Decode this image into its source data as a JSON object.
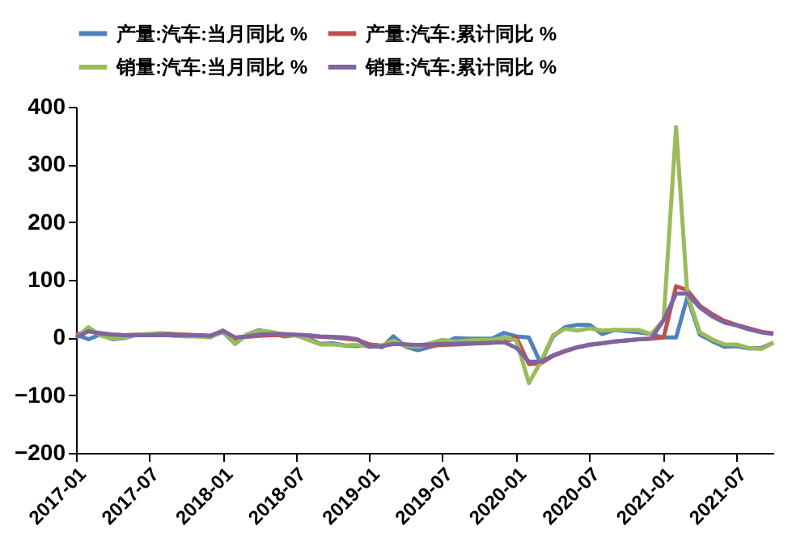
{
  "chart_data": {
    "type": "line",
    "x": [
      "2017-01",
      "2017-02",
      "2017-03",
      "2017-04",
      "2017-05",
      "2017-06",
      "2017-07",
      "2017-08",
      "2017-09",
      "2017-10",
      "2017-11",
      "2017-12",
      "2018-01",
      "2018-02",
      "2018-03",
      "2018-04",
      "2018-05",
      "2018-06",
      "2018-07",
      "2018-08",
      "2018-09",
      "2018-10",
      "2018-11",
      "2018-12",
      "2019-01",
      "2019-02",
      "2019-03",
      "2019-04",
      "2019-05",
      "2019-06",
      "2019-07",
      "2019-08",
      "2019-09",
      "2019-10",
      "2019-11",
      "2019-12",
      "2020-01",
      "2020-02",
      "2020-03",
      "2020-04",
      "2020-05",
      "2020-06",
      "2020-07",
      "2020-08",
      "2020-09",
      "2020-10",
      "2020-11",
      "2020-12",
      "2021-01",
      "2021-02",
      "2021-03",
      "2021-04",
      "2021-05",
      "2021-06",
      "2021-07",
      "2021-08",
      "2021-09",
      "2021-10"
    ],
    "series": [
      {
        "name": "产量:汽车:当月同比 %",
        "color": "#4f81bd",
        "values": [
          5,
          -3,
          5,
          -3,
          -1,
          5,
          6,
          7,
          6,
          4,
          2,
          1,
          10,
          -11,
          5,
          13,
          8,
          2,
          4,
          -1,
          -11,
          -10,
          -14,
          -15,
          -12,
          -17,
          2,
          -16,
          -22,
          -16,
          -11,
          -1,
          -2,
          -2,
          -2,
          8,
          2,
          0,
          -44,
          2,
          18,
          22,
          22,
          6,
          13,
          11,
          9,
          6,
          0,
          0,
          70,
          5,
          -6,
          -16,
          -15,
          -19,
          -18,
          -9
        ]
      },
      {
        "name": "产量:汽车:累计同比 %",
        "color": "#c0504d",
        "values": [
          5,
          11,
          8,
          5,
          4,
          5,
          5,
          5,
          5,
          5,
          4,
          3,
          10,
          -2,
          1,
          3,
          4,
          4,
          4,
          3,
          1,
          0,
          -2,
          -4,
          -12,
          -14,
          -10,
          -12,
          -14,
          -14,
          -13,
          -12,
          -11,
          -10,
          -9,
          -8,
          0,
          -46,
          -45,
          -32,
          -24,
          -17,
          -12,
          -10,
          -7,
          -5,
          -3,
          -2,
          0,
          89,
          82,
          55,
          41,
          29,
          22,
          16,
          10,
          7
        ]
      },
      {
        "name": "销量:汽车:当月同比 %",
        "color": "#9bbb59",
        "values": [
          0,
          18,
          4,
          -2,
          0,
          5,
          6,
          5,
          3,
          2,
          2,
          0,
          12,
          -11,
          5,
          12,
          10,
          5,
          4,
          -4,
          -12,
          -12,
          -14,
          -13,
          -16,
          -14,
          -5,
          -15,
          -16,
          -10,
          -4,
          -7,
          -5,
          -4,
          -4,
          0,
          -5,
          -79,
          -43,
          4,
          15,
          12,
          16,
          12,
          13,
          13,
          13,
          6,
          30,
          365,
          75,
          9,
          -3,
          -12,
          -12,
          -18,
          -20,
          -9
        ]
      },
      {
        "name": "销量:汽车:累计同比 %",
        "color": "#8064a2",
        "values": [
          0,
          11,
          7,
          5,
          4,
          4,
          4,
          4,
          4,
          4,
          4,
          3,
          12,
          0,
          2,
          5,
          6,
          6,
          5,
          4,
          2,
          1,
          0,
          -3,
          -16,
          -15,
          -11,
          -12,
          -13,
          -12,
          -11,
          -11,
          -10,
          -10,
          -9,
          -8,
          -18,
          -42,
          -42,
          -31,
          -23,
          -17,
          -13,
          -10,
          -7,
          -5,
          -3,
          -2,
          30,
          76,
          76,
          52,
          37,
          26,
          21,
          14,
          9,
          6
        ]
      }
    ],
    "xlim": [
      "2017-01",
      "2021-10"
    ],
    "xticks": [
      {
        "value": "2017-01",
        "label": "2017-01"
      },
      {
        "value": "2017-07",
        "label": "2017-07"
      },
      {
        "value": "2018-01",
        "label": "2018-01"
      },
      {
        "value": "2018-07",
        "label": "2018-07"
      },
      {
        "value": "2019-01",
        "label": "2019-01"
      },
      {
        "value": "2019-07",
        "label": "2019-07"
      },
      {
        "value": "2020-01",
        "label": "2020-01"
      },
      {
        "value": "2020-07",
        "label": "2020-07"
      },
      {
        "value": "2021-01",
        "label": "2021-01"
      },
      {
        "value": "2021-07",
        "label": "2021-07"
      }
    ],
    "ylim": [
      -200,
      400
    ],
    "yticks": [
      -200,
      -100,
      0,
      100,
      200,
      300,
      400
    ],
    "grid": false,
    "legend": "top",
    "marker": "none",
    "line_style": "solid"
  }
}
